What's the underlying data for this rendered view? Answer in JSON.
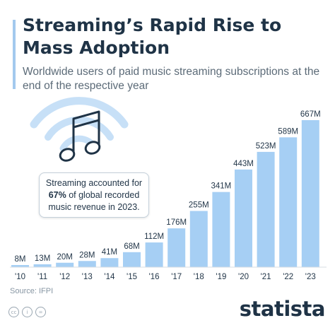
{
  "header": {
    "title": "Streaming’s Rapid Rise to Mass Adoption",
    "subtitle": "Worldwide users of paid music streaming subscriptions at the end of the respective year"
  },
  "annotation": {
    "line1": "Streaming accounted for",
    "highlight": "67%",
    "line2_rest": " of global recorded",
    "line3": "music revenue in 2023."
  },
  "source": "Source: IFPI",
  "brand": "statista",
  "icons": [
    "music-note-icon",
    "wave-icon",
    "cc-icon",
    "info-icon",
    "equals-icon"
  ],
  "colors": {
    "bar": "#a6cff4",
    "text": "#1f3346",
    "wave": "#c7e0f7"
  },
  "chart_data": {
    "type": "bar",
    "categories": [
      "'10",
      "'11",
      "'12",
      "'13",
      "'14",
      "'15",
      "'16",
      "'17",
      "'18",
      "'19",
      "'20",
      "'21",
      "'22",
      "'23"
    ],
    "values": [
      8,
      13,
      20,
      28,
      41,
      68,
      112,
      176,
      255,
      341,
      443,
      523,
      589,
      667
    ],
    "value_labels": [
      "8M",
      "13M",
      "20M",
      "28M",
      "41M",
      "68M",
      "112M",
      "176M",
      "255M",
      "341M",
      "443M",
      "523M",
      "589M",
      "667M"
    ],
    "unit": "M",
    "title": "Streaming’s Rapid Rise to Mass Adoption",
    "xlabel": "",
    "ylabel": "",
    "ylim": [
      0,
      667
    ],
    "grid": false,
    "legend": "none"
  }
}
